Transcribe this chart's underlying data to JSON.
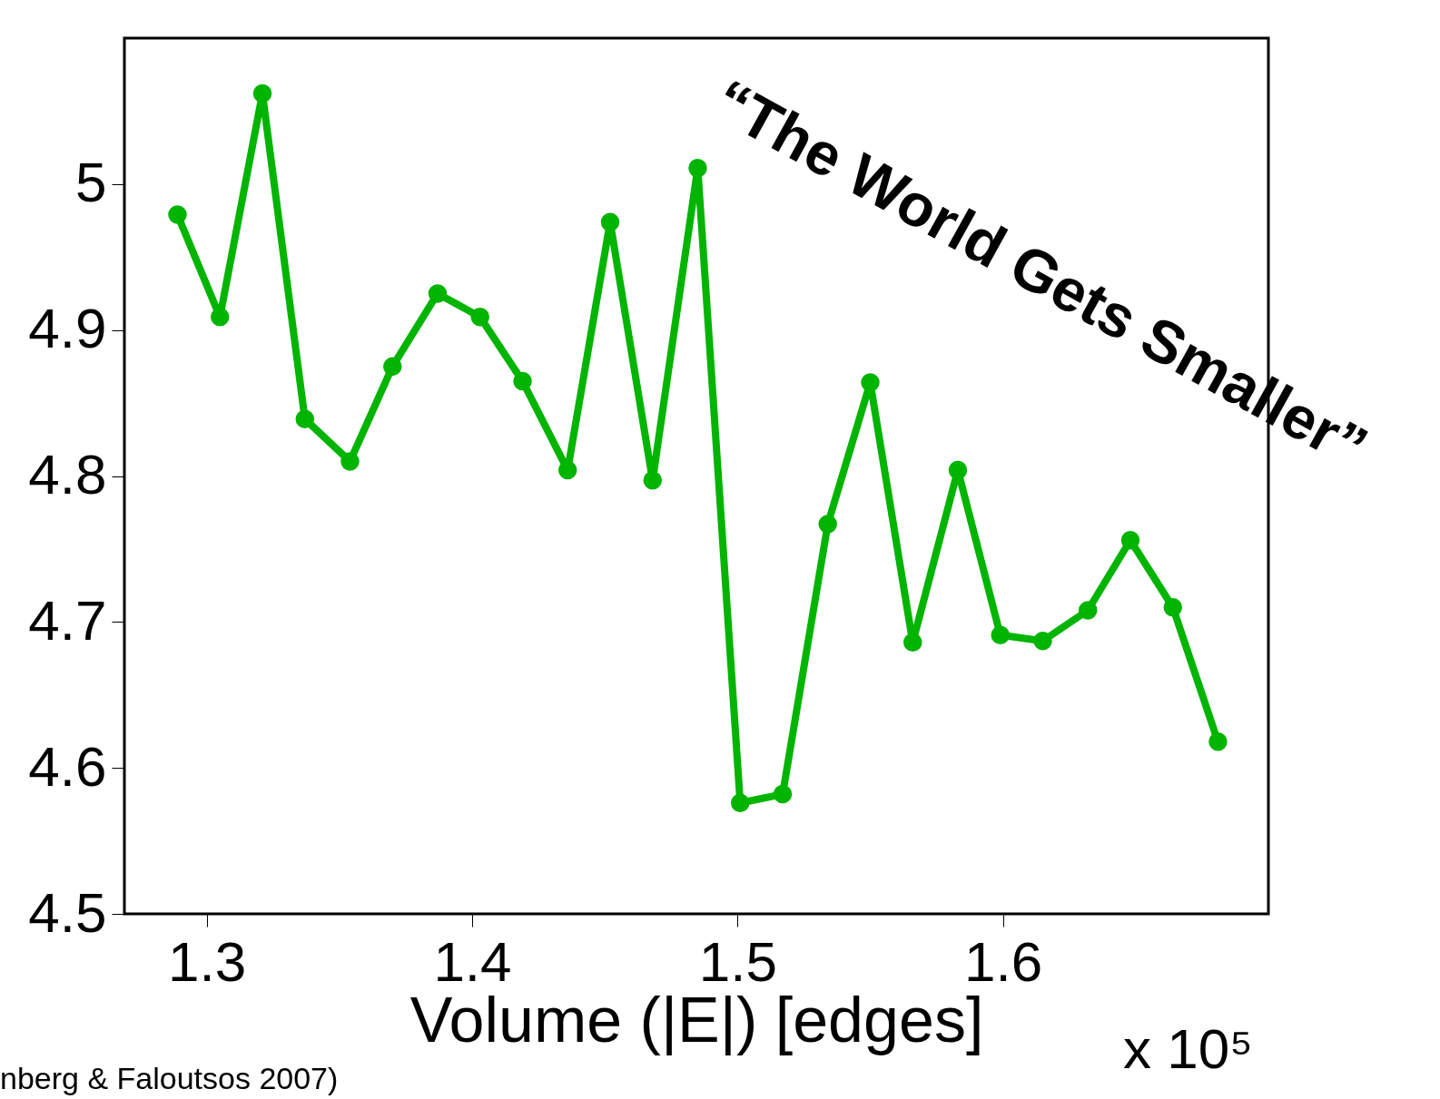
{
  "chart_data": {
    "type": "line",
    "xlabel": "Volume (|E|) [edges]",
    "annotations": [
      "“The World Gets Smaller”",
      "x 10⁵",
      "nberg & Faloutsos 2007)"
    ],
    "series": [
      {
        "color": "#00b400",
        "x": [
          1.289,
          1.305,
          1.321,
          1.337,
          1.354,
          1.37,
          1.387,
          1.403,
          1.419,
          1.436,
          1.452,
          1.468,
          1.485,
          1.501,
          1.517,
          1.534,
          1.55,
          1.566,
          1.583,
          1.599,
          1.615,
          1.632,
          1.648,
          1.664,
          1.681
        ],
        "values": [
          4.979,
          4.909,
          5.062,
          4.839,
          4.81,
          4.875,
          4.925,
          4.909,
          4.865,
          4.804,
          4.974,
          4.797,
          5.011,
          4.576,
          4.582,
          4.767,
          4.864,
          4.686,
          4.804,
          4.691,
          4.687,
          4.708,
          4.756,
          4.71,
          4.618
        ]
      }
    ],
    "xlim": [
      1.269,
      1.7
    ],
    "xticks": [
      1.3,
      1.4,
      1.5,
      1.6
    ],
    "ylim": [
      4.5,
      5.1
    ],
    "yticks": [
      4.5,
      4.6,
      4.7,
      4.8,
      4.9,
      5
    ],
    "marker": "circle",
    "line_style": "solid",
    "grid": false
  }
}
